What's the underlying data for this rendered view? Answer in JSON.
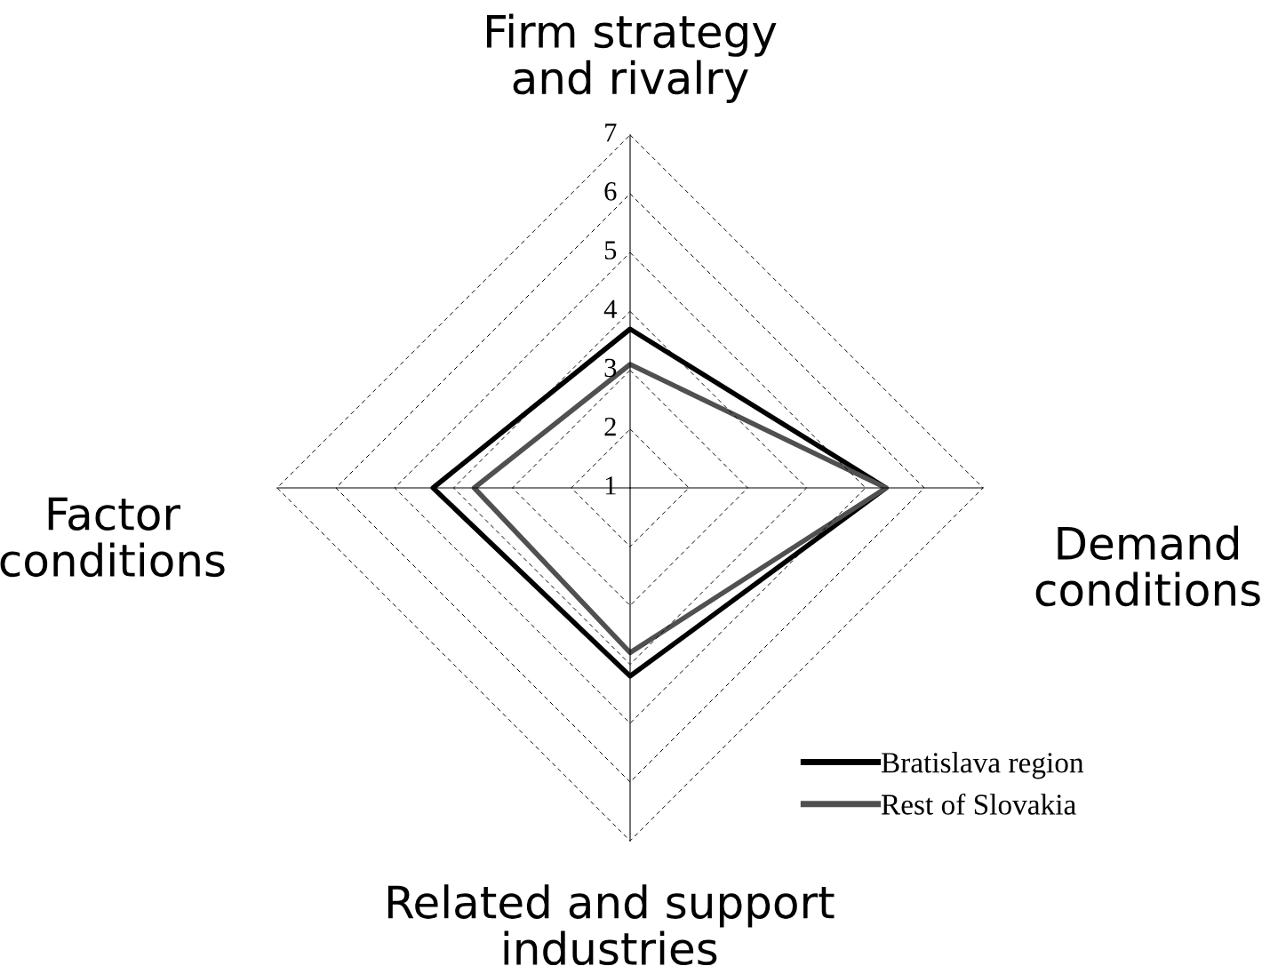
{
  "chart_data": {
    "type": "radar",
    "categories": [
      "Firm strategy\nand rivalry",
      "Demand\nconditions",
      "Related and support\nindustries",
      "Factor\nconditions"
    ],
    "series": [
      {
        "name": "Bratislava region",
        "color": "#000000",
        "values": [
          3.7,
          5.35,
          4.2,
          4.35
        ]
      },
      {
        "name": "Rest of Slovakia",
        "color": "#505050",
        "values": [
          3.1,
          5.35,
          3.8,
          3.65
        ]
      }
    ],
    "ylim": [
      1,
      7
    ],
    "yticks": [
      1,
      2,
      3,
      4,
      5,
      6,
      7
    ],
    "grid": true,
    "legend": "bottom right",
    "marker": "none",
    "line_style": "solid"
  }
}
